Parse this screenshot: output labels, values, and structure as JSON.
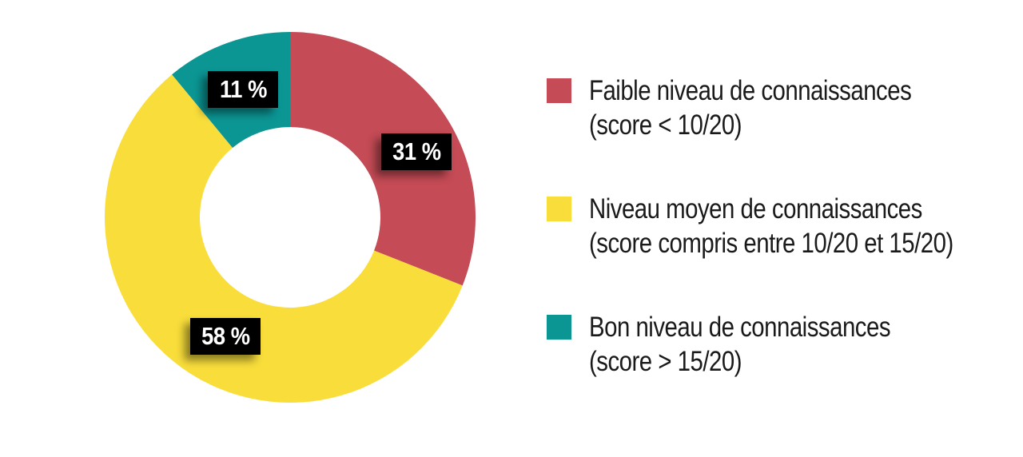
{
  "chart_data": {
    "type": "donut",
    "title": "",
    "unit": "%",
    "start_angle_deg": 0,
    "direction": "clockwise",
    "inner_radius_ratio": 0.487,
    "legend_position": "right",
    "value_label_bg": "#000000",
    "value_label_color": "#ffffff",
    "background": "#ffffff",
    "slices": [
      {
        "name": "faible-niveau",
        "value": 31,
        "label": "31 %",
        "color": "#c54b56",
        "legend_lines": [
          "Faible niveau de connaissances",
          "(score < 10/20)"
        ]
      },
      {
        "name": "niveau-moyen",
        "value": 58,
        "label": "58 %",
        "color": "#f9de3b",
        "legend_lines": [
          "Niveau moyen de connaissances",
          "(score compris entre 10/20 et 15/20)"
        ]
      },
      {
        "name": "bon-niveau",
        "value": 11,
        "label": "11 %",
        "color": "#0b9694",
        "legend_lines": [
          "Bon niveau de connaissances",
          "(score > 15/20)"
        ]
      }
    ]
  }
}
